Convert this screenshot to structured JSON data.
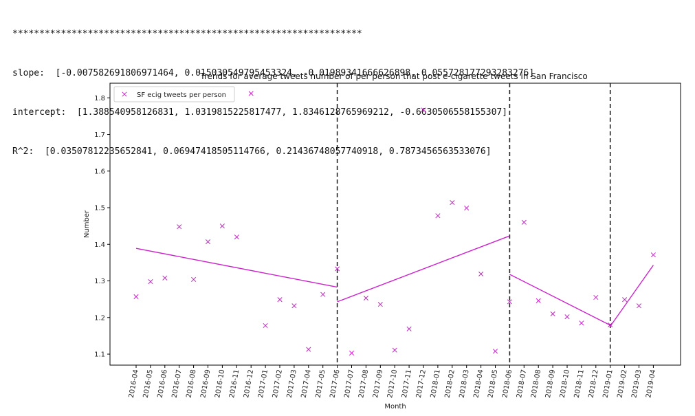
{
  "console": {
    "stars": "*****************************************************************",
    "slope_line": "slope:  [-0.007582691806971464, 0.015030549795453324, -0.01989341666626898, 0.055728177293283276]",
    "intercept_line": "intercept:  [1.388540958126831, 1.0319815225817477, 1.8346128765969212, -0.6630506558155307]",
    "r2_line": "R^2:  [0.03507812235652841, 0.06947418505114766, 0.21436748057740918, 0.7873456563533076]"
  },
  "colors": {
    "series": "#cc22cc",
    "divider": "#222222",
    "axis": "#000000"
  },
  "chart_data": {
    "type": "scatter",
    "title": "Trends for average tweets number of per person that post e-cigarette tweets in San Francisco",
    "xlabel": "Month",
    "ylabel": "Number",
    "ylim": [
      1.07,
      1.84
    ],
    "yticks": [
      1.1,
      1.2,
      1.3,
      1.4,
      1.5,
      1.6,
      1.7,
      1.8
    ],
    "ytick_labels": [
      "1.1",
      "1.2",
      "1.3",
      "1.4",
      "1.5",
      "1.6",
      "1.7",
      "1.8"
    ],
    "grid": false,
    "legend_position": "top-left",
    "categories": [
      "2016-04",
      "2016-05",
      "2016-06",
      "2016-07",
      "2016-08",
      "2016-09",
      "2016-10",
      "2016-11",
      "2016-12",
      "2017-01",
      "2017-02",
      "2017-03",
      "2017-04",
      "2017-05",
      "2017-06",
      "2017-07",
      "2017-08",
      "2017-09",
      "2017-10",
      "2017-11",
      "2017-12",
      "2018-01",
      "2018-02",
      "2018-03",
      "2018-04",
      "2018-05",
      "2018-06",
      "2018-07",
      "2018-08",
      "2018-09",
      "2018-10",
      "2018-11",
      "2018-12",
      "2019-01",
      "2019-02",
      "2019-03",
      "2019-04"
    ],
    "series": [
      {
        "name": "SF ecig tweets per person",
        "marker": "x",
        "values": [
          1.257,
          1.298,
          1.308,
          1.448,
          1.304,
          1.407,
          1.45,
          1.42,
          1.812,
          1.178,
          1.249,
          1.232,
          1.113,
          1.263,
          1.333,
          1.103,
          1.253,
          1.236,
          1.111,
          1.169,
          1.767,
          1.478,
          1.514,
          1.499,
          1.319,
          1.108,
          1.243,
          1.46,
          1.246,
          1.21,
          1.202,
          1.185,
          1.255,
          1.18,
          1.249,
          1.232,
          1.371
        ]
      }
    ],
    "trend_lines": [
      {
        "from_index": 0,
        "to_index": 14,
        "y_start": 1.389,
        "y_end": 1.283
      },
      {
        "from_index": 14,
        "to_index": 26,
        "y_start": 1.243,
        "y_end": 1.423
      },
      {
        "from_index": 26,
        "to_index": 33,
        "y_start": 1.318,
        "y_end": 1.179
      },
      {
        "from_index": 33,
        "to_index": 36,
        "y_start": 1.176,
        "y_end": 1.343
      }
    ],
    "dividers_at": [
      "2017-06",
      "2018-06",
      "2019-01"
    ]
  }
}
